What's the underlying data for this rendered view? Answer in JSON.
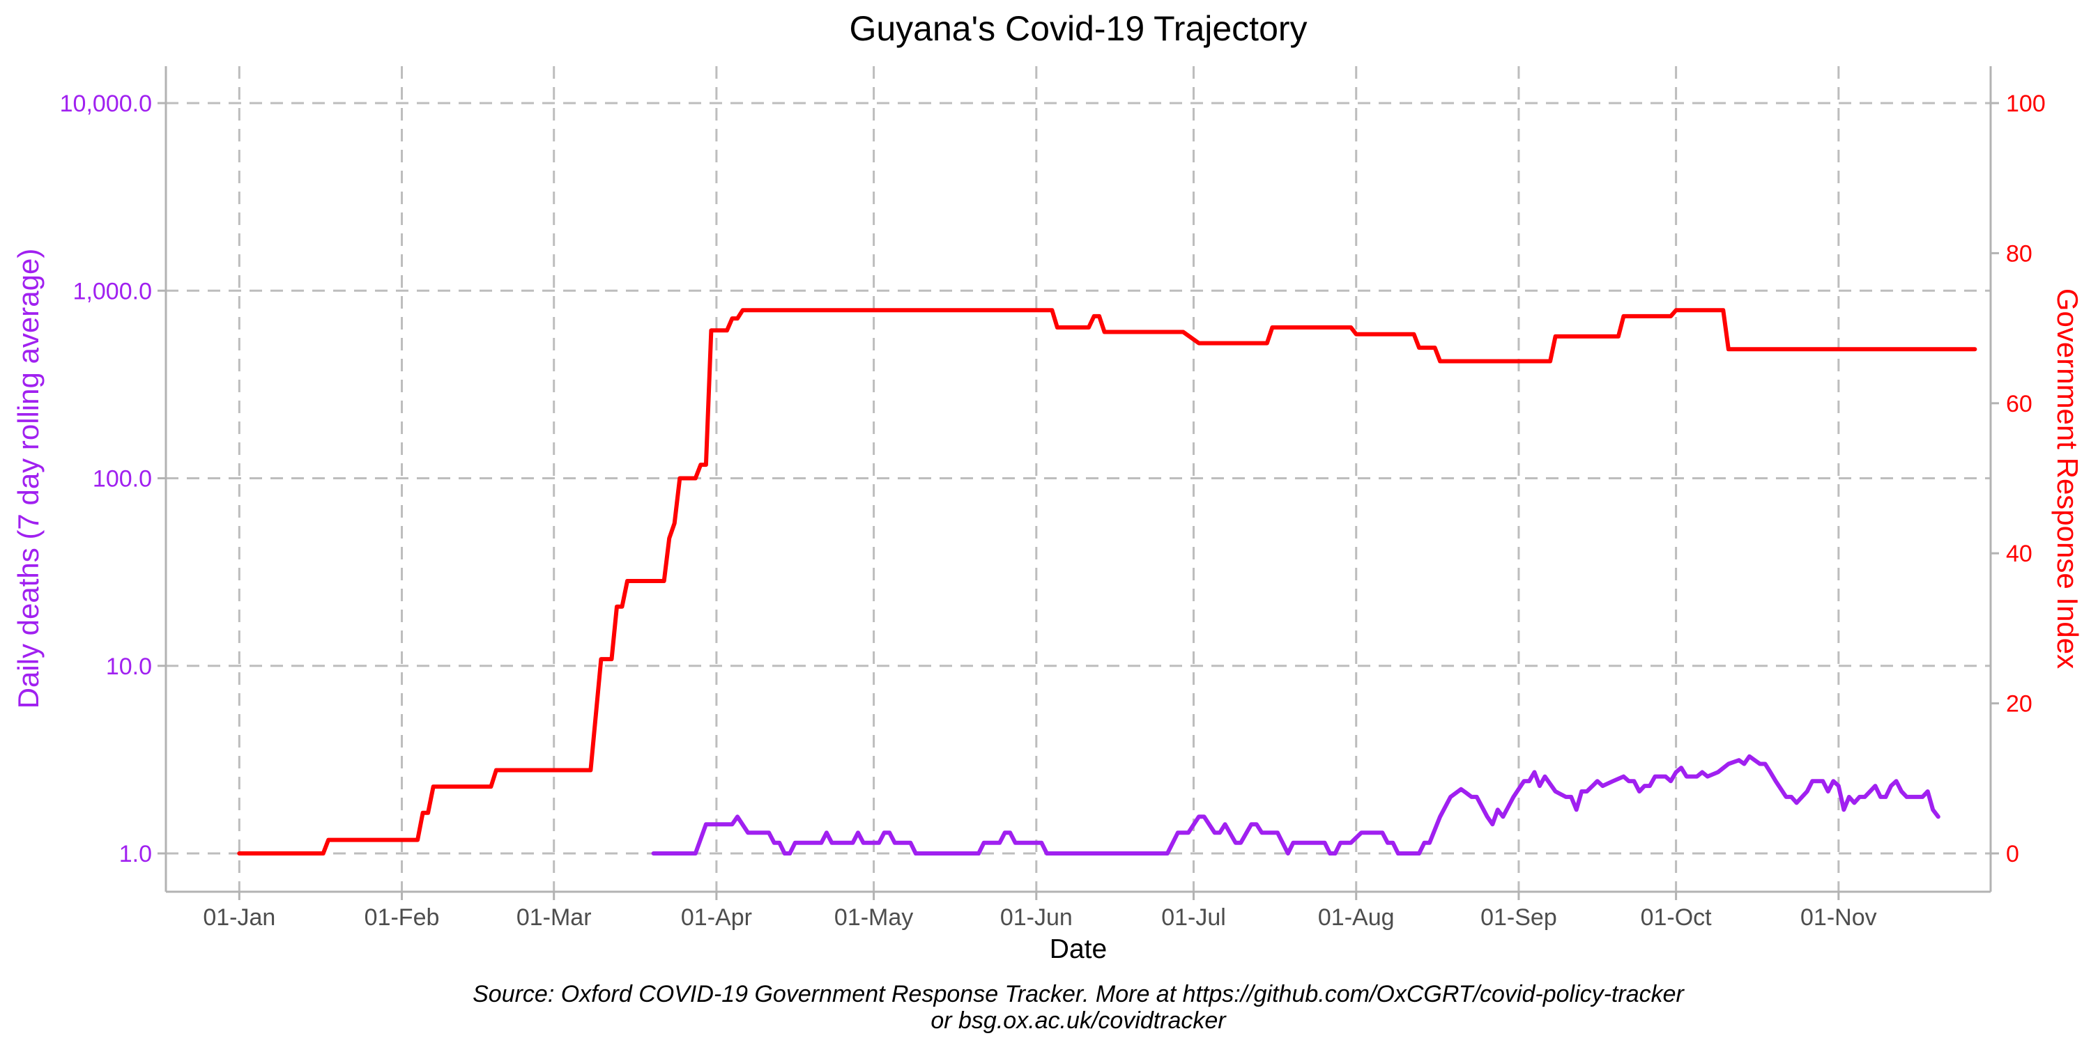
{
  "chart_data": {
    "type": "line",
    "title": "Guyana's Covid-19 Trajectory",
    "xlabel": "Date",
    "ylabel_left": "Daily deaths (7 day rolling average)",
    "ylabel_right": "Government Response Index",
    "caption_line1": "Source: Oxford COVID-19 Government Response Tracker. More at https://github.com/OxCGRT/covid-policy-tracker",
    "caption_line2": "or bsg.ox.ac.uk/covidtracker",
    "grid": true,
    "x_domain": [
      "2019-12-18",
      "2020-11-30"
    ],
    "x_ticks": [
      {
        "date": "2020-01-01",
        "label": "01-Jan"
      },
      {
        "date": "2020-02-01",
        "label": "01-Feb"
      },
      {
        "date": "2020-03-01",
        "label": "01-Mar"
      },
      {
        "date": "2020-04-01",
        "label": "01-Apr"
      },
      {
        "date": "2020-05-01",
        "label": "01-May"
      },
      {
        "date": "2020-06-01",
        "label": "01-Jun"
      },
      {
        "date": "2020-07-01",
        "label": "01-Jul"
      },
      {
        "date": "2020-08-01",
        "label": "01-Aug"
      },
      {
        "date": "2020-09-01",
        "label": "01-Sep"
      },
      {
        "date": "2020-10-01",
        "label": "01-Oct"
      },
      {
        "date": "2020-11-01",
        "label": "01-Nov"
      }
    ],
    "y_left": {
      "scale": "log10",
      "range": [
        1,
        10000
      ],
      "ticks": [
        {
          "value": 1,
          "label": "1.0"
        },
        {
          "value": 10,
          "label": "10.0"
        },
        {
          "value": 100,
          "label": "100.0"
        },
        {
          "value": 1000,
          "label": "1,000.0"
        },
        {
          "value": 10000,
          "label": "10,000.0"
        }
      ]
    },
    "y_right": {
      "scale": "linear",
      "range": [
        0,
        100
      ],
      "ticks": [
        {
          "value": 0,
          "label": "0"
        },
        {
          "value": 20,
          "label": "20"
        },
        {
          "value": 40,
          "label": "40"
        },
        {
          "value": 60,
          "label": "60"
        },
        {
          "value": 80,
          "label": "80"
        },
        {
          "value": 100,
          "label": "100"
        }
      ]
    },
    "series": [
      {
        "axis": "left",
        "color": "#a020f0",
        "points": [
          [
            "2020-03-20",
            1.0
          ],
          [
            "2020-03-28",
            1.0
          ],
          [
            "2020-03-30",
            1.43
          ],
          [
            "2020-04-04",
            1.43
          ],
          [
            "2020-04-05",
            1.57
          ],
          [
            "2020-04-07",
            1.29
          ],
          [
            "2020-04-11",
            1.29
          ],
          [
            "2020-04-12",
            1.14
          ],
          [
            "2020-04-13",
            1.14
          ],
          [
            "2020-04-14",
            1.0
          ],
          [
            "2020-04-15",
            1.0
          ],
          [
            "2020-04-16",
            1.14
          ],
          [
            "2020-04-21",
            1.14
          ],
          [
            "2020-04-22",
            1.29
          ],
          [
            "2020-04-23",
            1.14
          ],
          [
            "2020-04-27",
            1.14
          ],
          [
            "2020-04-28",
            1.29
          ],
          [
            "2020-04-29",
            1.14
          ],
          [
            "2020-05-02",
            1.14
          ],
          [
            "2020-05-03",
            1.29
          ],
          [
            "2020-05-04",
            1.29
          ],
          [
            "2020-05-05",
            1.14
          ],
          [
            "2020-05-08",
            1.14
          ],
          [
            "2020-05-09",
            1.0
          ],
          [
            "2020-05-21",
            1.0
          ],
          [
            "2020-05-22",
            1.14
          ],
          [
            "2020-05-25",
            1.14
          ],
          [
            "2020-05-26",
            1.29
          ],
          [
            "2020-05-27",
            1.29
          ],
          [
            "2020-05-28",
            1.14
          ],
          [
            "2020-06-02",
            1.14
          ],
          [
            "2020-06-03",
            1.0
          ],
          [
            "2020-06-26",
            1.0
          ],
          [
            "2020-06-28",
            1.29
          ],
          [
            "2020-06-30",
            1.29
          ],
          [
            "2020-07-02",
            1.57
          ],
          [
            "2020-07-03",
            1.57
          ],
          [
            "2020-07-05",
            1.29
          ],
          [
            "2020-07-06",
            1.29
          ],
          [
            "2020-07-07",
            1.43
          ],
          [
            "2020-07-09",
            1.14
          ],
          [
            "2020-07-10",
            1.14
          ],
          [
            "2020-07-12",
            1.43
          ],
          [
            "2020-07-13",
            1.43
          ],
          [
            "2020-07-14",
            1.29
          ],
          [
            "2020-07-17",
            1.29
          ],
          [
            "2020-07-19",
            1.0
          ],
          [
            "2020-07-20",
            1.14
          ],
          [
            "2020-07-26",
            1.14
          ],
          [
            "2020-07-27",
            1.0
          ],
          [
            "2020-07-28",
            1.0
          ],
          [
            "2020-07-29",
            1.14
          ],
          [
            "2020-07-31",
            1.14
          ],
          [
            "2020-08-02",
            1.29
          ],
          [
            "2020-08-06",
            1.29
          ],
          [
            "2020-08-07",
            1.14
          ],
          [
            "2020-08-08",
            1.14
          ],
          [
            "2020-08-09",
            1.0
          ],
          [
            "2020-08-13",
            1.0
          ],
          [
            "2020-08-14",
            1.14
          ],
          [
            "2020-08-15",
            1.14
          ],
          [
            "2020-08-17",
            1.57
          ],
          [
            "2020-08-19",
            2.0
          ],
          [
            "2020-08-21",
            2.2
          ],
          [
            "2020-08-22",
            2.1
          ],
          [
            "2020-08-23",
            2.0
          ],
          [
            "2020-08-24",
            2.0
          ],
          [
            "2020-08-26",
            1.57
          ],
          [
            "2020-08-27",
            1.43
          ],
          [
            "2020-08-28",
            1.71
          ],
          [
            "2020-08-29",
            1.57
          ],
          [
            "2020-08-31",
            2.0
          ],
          [
            "2020-09-02",
            2.43
          ],
          [
            "2020-09-03",
            2.43
          ],
          [
            "2020-09-04",
            2.71
          ],
          [
            "2020-09-05",
            2.29
          ],
          [
            "2020-09-06",
            2.57
          ],
          [
            "2020-09-08",
            2.14
          ],
          [
            "2020-09-10",
            2.0
          ],
          [
            "2020-09-11",
            2.0
          ],
          [
            "2020-09-12",
            1.71
          ],
          [
            "2020-09-13",
            2.14
          ],
          [
            "2020-09-14",
            2.14
          ],
          [
            "2020-09-16",
            2.43
          ],
          [
            "2020-09-17",
            2.29
          ],
          [
            "2020-09-19",
            2.43
          ],
          [
            "2020-09-21",
            2.57
          ],
          [
            "2020-09-22",
            2.43
          ],
          [
            "2020-09-23",
            2.43
          ],
          [
            "2020-09-24",
            2.14
          ],
          [
            "2020-09-25",
            2.29
          ],
          [
            "2020-09-26",
            2.29
          ],
          [
            "2020-09-27",
            2.57
          ],
          [
            "2020-09-29",
            2.57
          ],
          [
            "2020-09-30",
            2.43
          ],
          [
            "2020-10-01",
            2.71
          ],
          [
            "2020-10-02",
            2.86
          ],
          [
            "2020-10-03",
            2.57
          ],
          [
            "2020-10-05",
            2.57
          ],
          [
            "2020-10-06",
            2.71
          ],
          [
            "2020-10-07",
            2.57
          ],
          [
            "2020-10-09",
            2.71
          ],
          [
            "2020-10-11",
            3.0
          ],
          [
            "2020-10-13",
            3.14
          ],
          [
            "2020-10-14",
            3.0
          ],
          [
            "2020-10-15",
            3.29
          ],
          [
            "2020-10-16",
            3.14
          ],
          [
            "2020-10-17",
            3.0
          ],
          [
            "2020-10-18",
            3.0
          ],
          [
            "2020-10-19",
            2.71
          ],
          [
            "2020-10-20",
            2.43
          ],
          [
            "2020-10-22",
            2.0
          ],
          [
            "2020-10-23",
            2.0
          ],
          [
            "2020-10-24",
            1.86
          ],
          [
            "2020-10-26",
            2.14
          ],
          [
            "2020-10-27",
            2.43
          ],
          [
            "2020-10-29",
            2.43
          ],
          [
            "2020-10-30",
            2.14
          ],
          [
            "2020-10-31",
            2.43
          ],
          [
            "2020-11-01",
            2.29
          ],
          [
            "2020-11-02",
            1.71
          ],
          [
            "2020-11-03",
            2.0
          ],
          [
            "2020-11-04",
            1.86
          ],
          [
            "2020-11-05",
            2.0
          ],
          [
            "2020-11-06",
            2.0
          ],
          [
            "2020-11-07",
            2.14
          ],
          [
            "2020-11-08",
            2.29
          ],
          [
            "2020-11-09",
            2.0
          ],
          [
            "2020-11-10",
            2.0
          ],
          [
            "2020-11-11",
            2.29
          ],
          [
            "2020-11-12",
            2.43
          ],
          [
            "2020-11-13",
            2.14
          ],
          [
            "2020-11-14",
            2.0
          ],
          [
            "2020-11-17",
            2.0
          ],
          [
            "2020-11-18",
            2.14
          ],
          [
            "2020-11-19",
            1.71
          ],
          [
            "2020-11-20",
            1.57
          ]
        ]
      },
      {
        "axis": "right",
        "color": "#ff0000",
        "points": [
          [
            "2020-01-01",
            0
          ],
          [
            "2020-01-17",
            0
          ],
          [
            "2020-01-18",
            1.8
          ],
          [
            "2020-01-28",
            1.8
          ],
          [
            "2020-02-04",
            1.8
          ],
          [
            "2020-02-05",
            5.4
          ],
          [
            "2020-02-06",
            5.4
          ],
          [
            "2020-02-07",
            8.9
          ],
          [
            "2020-02-18",
            8.9
          ],
          [
            "2020-02-19",
            11.1
          ],
          [
            "2020-02-20",
            11.1
          ],
          [
            "2020-03-08",
            11.1
          ],
          [
            "2020-03-10",
            25.9
          ],
          [
            "2020-03-12",
            25.9
          ],
          [
            "2020-03-13",
            32.9
          ],
          [
            "2020-03-14",
            32.9
          ],
          [
            "2020-03-15",
            36.3
          ],
          [
            "2020-03-22",
            36.3
          ],
          [
            "2020-03-23",
            42.0
          ],
          [
            "2020-03-24",
            44.0
          ],
          [
            "2020-03-25",
            50.0
          ],
          [
            "2020-03-28",
            50.0
          ],
          [
            "2020-03-29",
            51.8
          ],
          [
            "2020-03-30",
            51.8
          ],
          [
            "2020-03-31",
            69.7
          ],
          [
            "2020-04-03",
            69.7
          ],
          [
            "2020-04-04",
            71.3
          ],
          [
            "2020-04-05",
            71.3
          ],
          [
            "2020-04-06",
            72.4
          ],
          [
            "2020-06-04",
            72.4
          ],
          [
            "2020-06-05",
            70.1
          ],
          [
            "2020-06-11",
            70.1
          ],
          [
            "2020-06-12",
            71.6
          ],
          [
            "2020-06-13",
            71.6
          ],
          [
            "2020-06-14",
            69.5
          ],
          [
            "2020-06-29",
            69.5
          ],
          [
            "2020-07-02",
            68.0
          ],
          [
            "2020-07-15",
            68.0
          ],
          [
            "2020-07-16",
            70.1
          ],
          [
            "2020-07-31",
            70.1
          ],
          [
            "2020-08-01",
            69.2
          ],
          [
            "2020-08-12",
            69.2
          ],
          [
            "2020-08-13",
            67.4
          ],
          [
            "2020-08-16",
            67.4
          ],
          [
            "2020-08-17",
            65.6
          ],
          [
            "2020-09-07",
            65.6
          ],
          [
            "2020-09-08",
            68.9
          ],
          [
            "2020-09-20",
            68.9
          ],
          [
            "2020-09-21",
            71.6
          ],
          [
            "2020-09-30",
            71.6
          ],
          [
            "2020-10-01",
            72.4
          ],
          [
            "2020-10-10",
            72.4
          ],
          [
            "2020-10-11",
            67.2
          ],
          [
            "2020-11-27",
            67.2
          ]
        ]
      }
    ]
  }
}
